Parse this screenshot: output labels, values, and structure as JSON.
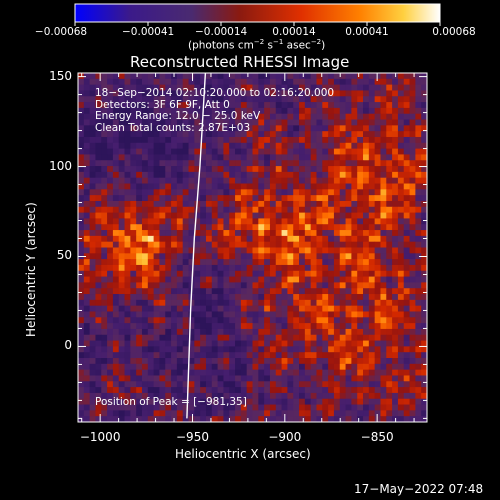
{
  "chart_data": {
    "type": "heatmap",
    "title": "Reconstructed RHESSI Image",
    "xlabel": "Heliocentric X (arcsec)",
    "ylabel": "Heliocentric Y (arcsec)",
    "xlim": [
      -1012,
      -823
    ],
    "ylim": [
      -42,
      152
    ],
    "x_ticks": [
      -1000,
      -950,
      -900,
      -850
    ],
    "x_tick_labels": [
      "−1000",
      "−950",
      "−900",
      "−850"
    ],
    "y_ticks": [
      0,
      50,
      100,
      150
    ],
    "y_tick_labels": [
      "0",
      "50",
      "100",
      "150"
    ],
    "colorbar": {
      "range": [
        -0.00068,
        0.00068
      ],
      "tick_labels": [
        "−0.00068",
        "−0.00041",
        "−0.00014",
        "0.00014",
        "0.00041",
        "0.00068"
      ],
      "units_parts": [
        "(photons cm",
        "−2",
        " s",
        "−1",
        " asec",
        "−2",
        ")"
      ],
      "colormap": [
        "#0000ff",
        "#3b1a8a",
        "#4a2a70",
        "#8a1a10",
        "#e03000",
        "#ff8000",
        "#ffd040",
        "#ffffff"
      ]
    },
    "annotations": [
      "18−Sep−2014 02:10:20.000 to 02:16:20.000",
      "Detectors: 3F 6F 9F, Att 0",
      "Energy Range: 12.0 − 25.0 keV",
      "Clean     Total counts: 2.87E+03"
    ],
    "peak_label": "Position of Peak = [−981,35]",
    "peak": [
      -981,
      35
    ],
    "limb_points": [
      [
        -953,
        -40
      ],
      [
        -951,
        20
      ],
      [
        -949,
        60
      ],
      [
        -946,
        100
      ],
      [
        -943,
        152
      ]
    ],
    "limb_color": "#ffffff",
    "grid": false
  },
  "footer": {
    "timestamp": "17−May−2022 07:48"
  }
}
